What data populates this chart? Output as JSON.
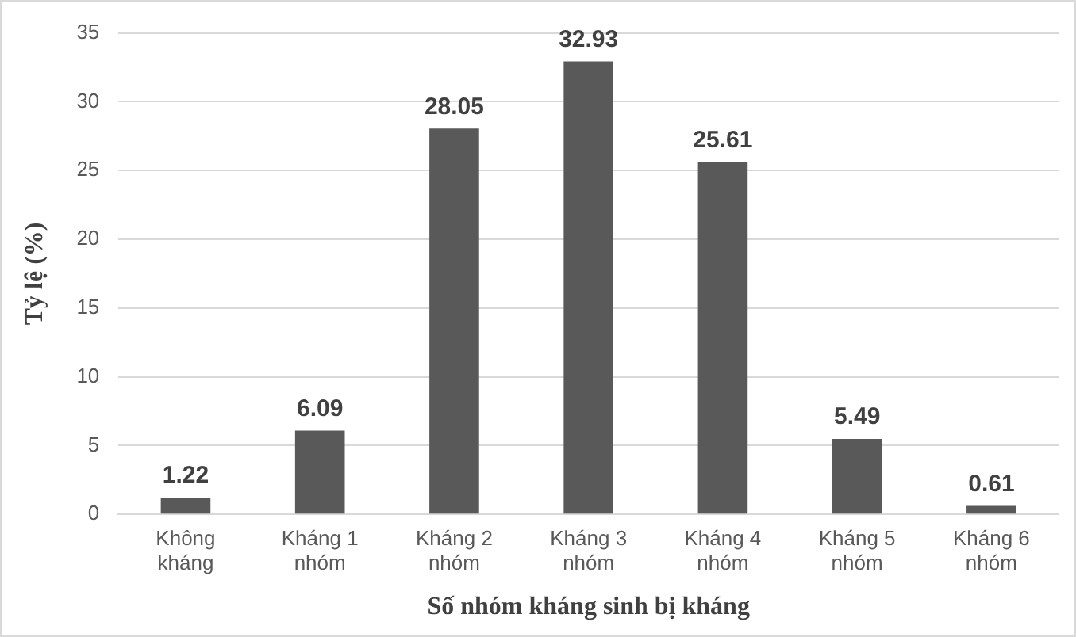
{
  "chart_data": {
    "type": "bar",
    "xlabel": "Số nhóm kháng sinh bị kháng",
    "ylabel": "Tỷ lệ (%)",
    "categories": [
      "Không kháng",
      "Kháng 1 nhóm",
      "Kháng 2 nhóm",
      "Kháng 3 nhóm",
      "Kháng 4 nhóm",
      "Kháng 5 nhóm",
      "Kháng 6 nhóm"
    ],
    "values": [
      1.22,
      6.09,
      28.05,
      32.93,
      25.61,
      5.49,
      0.61
    ],
    "color": "#595959",
    "ylim": [
      0,
      35
    ],
    "yticks": [
      0,
      5,
      10,
      15,
      20,
      25,
      30,
      35
    ],
    "grid": "y",
    "data_labels": true,
    "legend": false
  }
}
